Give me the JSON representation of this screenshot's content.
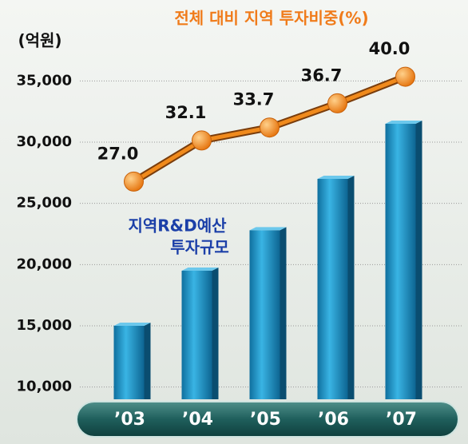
{
  "chart_data": {
    "type": "bar",
    "title": "전체 대비 지역 투자비중(%)",
    "y_axis_label": "(억원)",
    "annotation": [
      "지역R&D예산",
      "투자규모"
    ],
    "categories": [
      "’03",
      "’04",
      "’05",
      "’06",
      "’07"
    ],
    "series": [
      {
        "name": "지역R&D예산 투자규모",
        "type": "bar",
        "color": "#1a8fc4",
        "values": [
          15000,
          19500,
          22800,
          27000,
          31500
        ]
      },
      {
        "name": "전체 대비 지역 투자비중(%)",
        "type": "line",
        "axis": "y2",
        "color": "#f08a1c",
        "values": [
          27,
          32.1,
          33.7,
          36.7,
          40
        ],
        "value_labels": [
          "27.0",
          "32.1",
          "33.7",
          "36.7",
          "40.0"
        ]
      }
    ],
    "ylim": [
      9000,
      36000
    ],
    "yticks": [
      {
        "value": 10000,
        "label": "10,000"
      },
      {
        "value": 15000,
        "label": "15,000"
      },
      {
        "value": 20000,
        "label": "20,000"
      },
      {
        "value": 25000,
        "label": "25,000"
      },
      {
        "value": 30000,
        "label": "30,000"
      },
      {
        "value": 35000,
        "label": "35,000"
      }
    ],
    "y2lim": [
      0,
      41
    ],
    "grid": true
  }
}
